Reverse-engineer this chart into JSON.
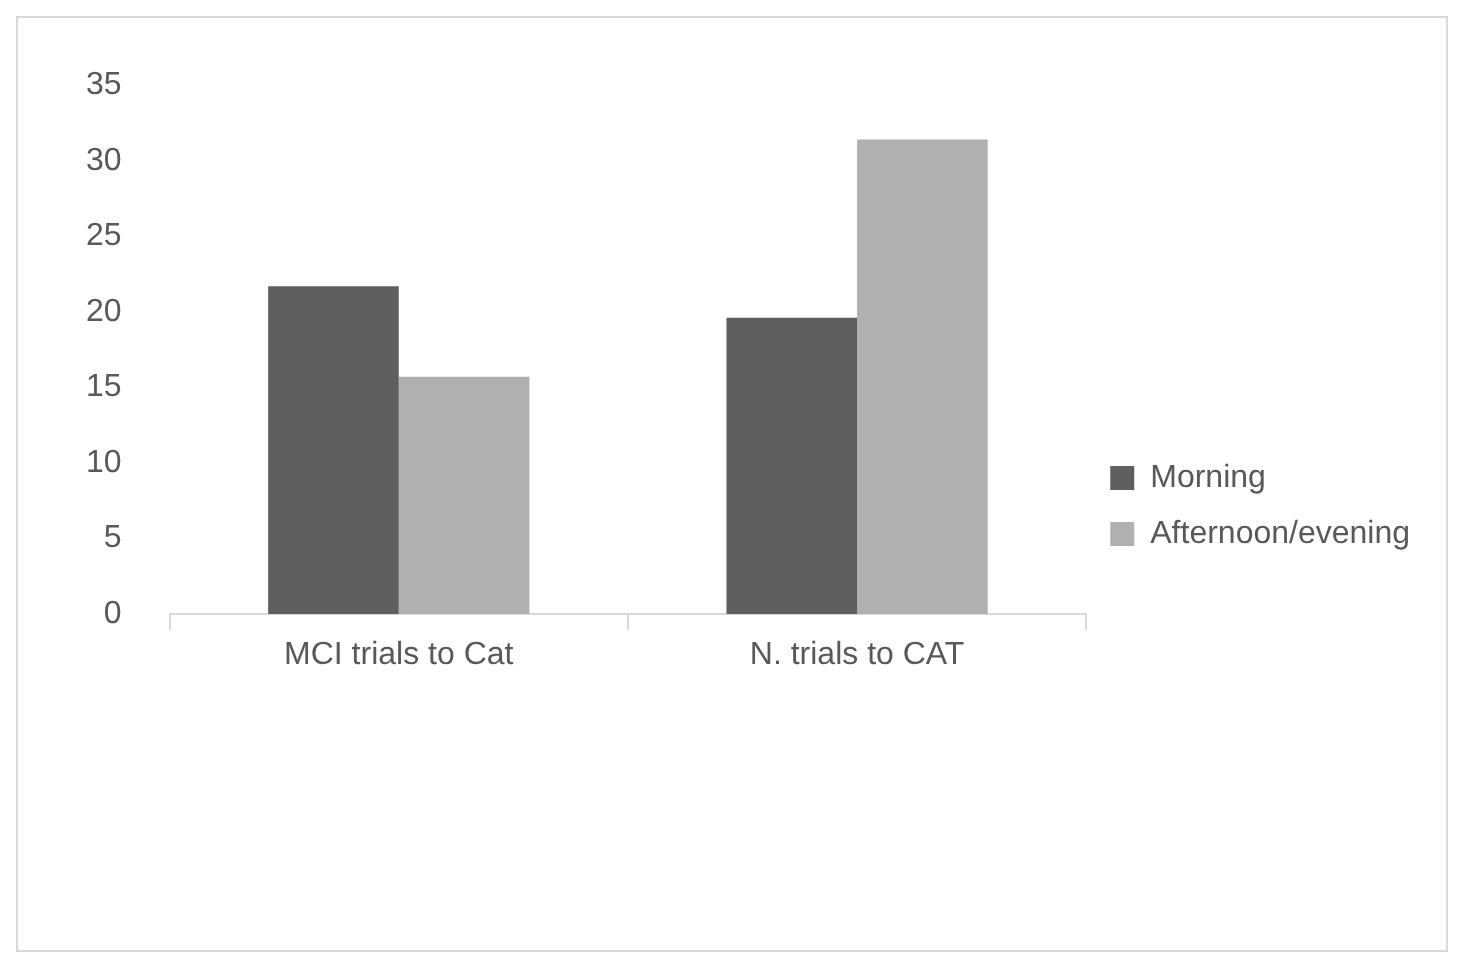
{
  "chart_data": {
    "type": "bar",
    "categories": [
      "MCI trials to Cat",
      "N. trials to CAT"
    ],
    "series": [
      {
        "name": "Morning",
        "color": "#5f5f5f",
        "values": [
          21.7,
          19.6
        ]
      },
      {
        "name": "Afternoon/evening",
        "color": "#b0b0b0",
        "values": [
          15.7,
          31.4
        ]
      }
    ],
    "ylim": [
      0,
      35
    ],
    "yticks": [
      0,
      5,
      10,
      15,
      20,
      25,
      30,
      35
    ],
    "grid": false,
    "legend": "right"
  }
}
